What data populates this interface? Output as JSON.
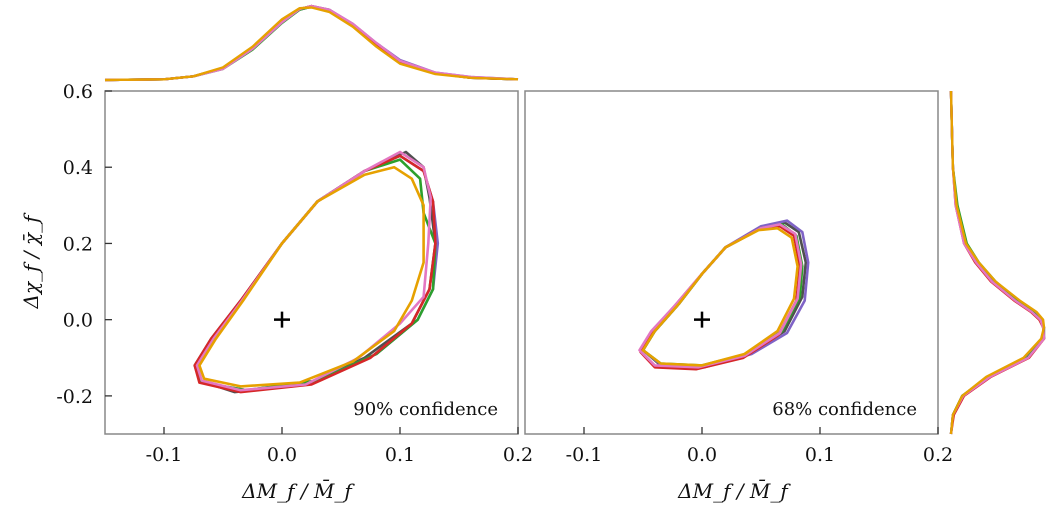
{
  "chart_data": {
    "type": "line",
    "title": "",
    "series_colors": [
      "#4f4f4f",
      "#7f63c6",
      "#2ca02c",
      "#d62728",
      "#e377c2",
      "#e6a100"
    ],
    "panels": [
      {
        "name": "left",
        "xlabel": "ΔM_f / M̄_f",
        "ylabel": "Δχ_f / χ̄_f",
        "xlim": [
          -0.15,
          0.2
        ],
        "ylim": [
          -0.3,
          0.6
        ],
        "xticks": [
          -0.1,
          0.0,
          0.1,
          0.2
        ],
        "xtick_labels": [
          "-0.1",
          "0.0",
          "0.1",
          "0.2"
        ],
        "yticks": [
          -0.2,
          0.0,
          0.2,
          0.4,
          0.6
        ],
        "ytick_labels": [
          "-0.2",
          "0.0",
          "0.2",
          "0.4",
          "0.6"
        ],
        "annotation": "90% confidence",
        "marker": {
          "x": 0.0,
          "y": 0.0,
          "symbol": "+"
        },
        "contours": [
          {
            "x": [
              0.0,
              0.03,
              0.07,
              0.105,
              0.12,
              0.125,
              0.13,
              0.125,
              0.11,
              0.07,
              0.02,
              -0.04,
              -0.07,
              -0.074,
              -0.06,
              -0.035,
              0.0
            ],
            "y": [
              0.2,
              0.31,
              0.39,
              0.44,
              0.4,
              0.32,
              0.2,
              0.08,
              -0.01,
              -0.1,
              -0.17,
              -0.19,
              -0.16,
              -0.12,
              -0.05,
              0.05,
              0.2
            ]
          },
          {
            "x": [
              0.0,
              0.03,
              0.07,
              0.1,
              0.12,
              0.128,
              0.132,
              0.128,
              0.115,
              0.08,
              0.03,
              -0.03,
              -0.068,
              -0.072,
              -0.058,
              -0.034,
              0.0
            ],
            "y": [
              0.2,
              0.31,
              0.39,
              0.43,
              0.39,
              0.31,
              0.2,
              0.08,
              0.0,
              -0.09,
              -0.16,
              -0.185,
              -0.165,
              -0.12,
              -0.05,
              0.05,
              0.2
            ]
          },
          {
            "x": [
              0.0,
              0.03,
              0.07,
              0.1,
              0.117,
              0.12,
              0.13,
              0.128,
              0.115,
              0.08,
              0.03,
              -0.03,
              -0.068,
              -0.072,
              -0.058,
              -0.034,
              0.0
            ],
            "y": [
              0.2,
              0.31,
              0.39,
              0.42,
              0.37,
              0.28,
              0.2,
              0.08,
              0.0,
              -0.09,
              -0.16,
              -0.185,
              -0.165,
              -0.12,
              -0.05,
              0.05,
              0.2
            ]
          },
          {
            "x": [
              0.0,
              0.03,
              0.07,
              0.1,
              0.12,
              0.128,
              0.13,
              0.125,
              0.11,
              0.075,
              0.025,
              -0.035,
              -0.07,
              -0.074,
              -0.06,
              -0.035,
              0.0
            ],
            "y": [
              0.2,
              0.31,
              0.39,
              0.43,
              0.39,
              0.31,
              0.2,
              0.08,
              -0.01,
              -0.1,
              -0.17,
              -0.19,
              -0.165,
              -0.12,
              -0.05,
              0.05,
              0.2
            ]
          },
          {
            "x": [
              0.0,
              0.03,
              0.07,
              0.1,
              0.12,
              0.126,
              0.124,
              0.12,
              0.1,
              0.065,
              0.02,
              -0.035,
              -0.068,
              -0.072,
              -0.058,
              -0.034,
              0.0
            ],
            "y": [
              0.2,
              0.31,
              0.39,
              0.44,
              0.4,
              0.32,
              0.2,
              0.06,
              -0.01,
              -0.1,
              -0.17,
              -0.185,
              -0.16,
              -0.12,
              -0.05,
              0.05,
              0.2
            ]
          },
          {
            "x": [
              0.0,
              0.03,
              0.07,
              0.095,
              0.11,
              0.12,
              0.12,
              0.11,
              0.095,
              0.06,
              0.015,
              -0.035,
              -0.066,
              -0.07,
              -0.056,
              -0.033,
              0.0
            ],
            "y": [
              0.2,
              0.31,
              0.38,
              0.4,
              0.37,
              0.3,
              0.15,
              0.05,
              -0.03,
              -0.11,
              -0.165,
              -0.175,
              -0.155,
              -0.12,
              -0.05,
              0.05,
              0.2
            ]
          }
        ]
      },
      {
        "name": "right",
        "xlabel": "ΔM_f / M̄_f",
        "xlim": [
          -0.15,
          0.2
        ],
        "ylim": [
          -0.3,
          0.6
        ],
        "xticks": [
          -0.1,
          0.0,
          0.1,
          0.2
        ],
        "xtick_labels": [
          "-0.1",
          "0.0",
          "0.1",
          "0.2"
        ],
        "annotation": "68% confidence",
        "marker": {
          "x": 0.0,
          "y": 0.0,
          "symbol": "+"
        },
        "contours": [
          {
            "x": [
              0.0,
              0.02,
              0.05,
              0.07,
              0.082,
              0.088,
              0.085,
              0.07,
              0.04,
              0.0,
              -0.035,
              -0.05,
              -0.04,
              -0.02,
              0.0
            ],
            "y": [
              0.12,
              0.19,
              0.24,
              0.255,
              0.23,
              0.15,
              0.06,
              -0.03,
              -0.09,
              -0.125,
              -0.12,
              -0.08,
              -0.03,
              0.04,
              0.12
            ]
          },
          {
            "x": [
              0.0,
              0.02,
              0.05,
              0.072,
              0.085,
              0.09,
              0.087,
              0.072,
              0.042,
              0.002,
              -0.034,
              -0.05,
              -0.04,
              -0.02,
              0.0
            ],
            "y": [
              0.12,
              0.19,
              0.245,
              0.26,
              0.23,
              0.15,
              0.05,
              -0.035,
              -0.09,
              -0.125,
              -0.12,
              -0.08,
              -0.03,
              0.04,
              0.12
            ]
          },
          {
            "x": [
              0.0,
              0.02,
              0.05,
              0.068,
              0.08,
              0.085,
              0.083,
              0.068,
              0.038,
              0.0,
              -0.035,
              -0.05,
              -0.04,
              -0.02,
              0.0
            ],
            "y": [
              0.12,
              0.19,
              0.24,
              0.25,
              0.22,
              0.14,
              0.06,
              -0.03,
              -0.09,
              -0.12,
              -0.115,
              -0.08,
              -0.03,
              0.04,
              0.12
            ]
          },
          {
            "x": [
              0.0,
              0.02,
              0.05,
              0.066,
              0.078,
              0.083,
              0.08,
              0.065,
              0.035,
              -0.005,
              -0.04,
              -0.052,
              -0.042,
              -0.022,
              0.0
            ],
            "y": [
              0.12,
              0.19,
              0.24,
              0.245,
              0.22,
              0.14,
              0.05,
              -0.04,
              -0.1,
              -0.13,
              -0.125,
              -0.085,
              -0.03,
              0.04,
              0.12
            ]
          },
          {
            "x": [
              0.0,
              0.02,
              0.05,
              0.066,
              0.079,
              0.084,
              0.081,
              0.066,
              0.036,
              -0.003,
              -0.04,
              -0.053,
              -0.043,
              -0.022,
              0.0
            ],
            "y": [
              0.12,
              0.19,
              0.24,
              0.25,
              0.225,
              0.145,
              0.055,
              -0.035,
              -0.095,
              -0.125,
              -0.12,
              -0.08,
              -0.03,
              0.04,
              0.12
            ]
          },
          {
            "x": [
              0.0,
              0.02,
              0.048,
              0.064,
              0.076,
              0.081,
              0.078,
              0.064,
              0.036,
              0.0,
              -0.035,
              -0.05,
              -0.04,
              -0.02,
              0.0
            ],
            "y": [
              0.12,
              0.19,
              0.235,
              0.24,
              0.215,
              0.14,
              0.055,
              -0.03,
              -0.09,
              -0.12,
              -0.115,
              -0.08,
              -0.03,
              0.04,
              0.12
            ]
          }
        ]
      }
    ],
    "marginal_top": {
      "axis": "x",
      "x": [
        -0.15,
        -0.1,
        -0.075,
        -0.05,
        -0.025,
        0.0,
        0.015,
        0.025,
        0.04,
        0.06,
        0.08,
        0.1,
        0.13,
        0.16,
        0.2
      ],
      "series": [
        [
          0.0,
          0.01,
          0.05,
          0.16,
          0.42,
          0.78,
          0.96,
          1.0,
          0.95,
          0.75,
          0.48,
          0.25,
          0.09,
          0.03,
          0.01
        ],
        [
          0.0,
          0.01,
          0.05,
          0.16,
          0.42,
          0.78,
          0.95,
          0.99,
          0.95,
          0.76,
          0.5,
          0.27,
          0.1,
          0.04,
          0.01
        ],
        [
          0.0,
          0.01,
          0.05,
          0.15,
          0.41,
          0.77,
          0.95,
          0.99,
          0.94,
          0.74,
          0.47,
          0.24,
          0.09,
          0.03,
          0.01
        ],
        [
          0.0,
          0.01,
          0.05,
          0.16,
          0.43,
          0.79,
          0.96,
          1.0,
          0.94,
          0.74,
          0.47,
          0.24,
          0.09,
          0.03,
          0.01
        ],
        [
          0.0,
          0.01,
          0.05,
          0.15,
          0.42,
          0.78,
          0.96,
          1.0,
          0.95,
          0.76,
          0.5,
          0.26,
          0.1,
          0.04,
          0.01
        ],
        [
          0.0,
          0.01,
          0.05,
          0.17,
          0.45,
          0.82,
          0.97,
          0.98,
          0.92,
          0.72,
          0.45,
          0.22,
          0.08,
          0.03,
          0.01
        ]
      ]
    },
    "marginal_right": {
      "axis": "y",
      "y": [
        -0.3,
        -0.25,
        -0.2,
        -0.15,
        -0.1,
        -0.05,
        -0.02,
        0.0,
        0.02,
        0.05,
        0.1,
        0.15,
        0.2,
        0.3,
        0.4,
        0.5,
        0.6
      ],
      "series": [
        [
          0.0,
          0.02,
          0.12,
          0.4,
          0.82,
          1.0,
          1.0,
          0.97,
          0.88,
          0.7,
          0.45,
          0.28,
          0.15,
          0.06,
          0.02,
          0.01,
          0.0
        ],
        [
          0.0,
          0.02,
          0.12,
          0.39,
          0.8,
          0.99,
          1.0,
          0.98,
          0.9,
          0.72,
          0.47,
          0.29,
          0.16,
          0.06,
          0.02,
          0.01,
          0.0
        ],
        [
          0.0,
          0.02,
          0.12,
          0.4,
          0.82,
          1.0,
          0.99,
          0.96,
          0.88,
          0.72,
          0.48,
          0.3,
          0.17,
          0.07,
          0.02,
          0.01,
          0.0
        ],
        [
          0.0,
          0.03,
          0.14,
          0.43,
          0.84,
          1.0,
          0.99,
          0.95,
          0.86,
          0.68,
          0.43,
          0.26,
          0.14,
          0.05,
          0.02,
          0.01,
          0.0
        ],
        [
          0.0,
          0.02,
          0.13,
          0.42,
          0.83,
          1.0,
          0.99,
          0.96,
          0.87,
          0.69,
          0.44,
          0.27,
          0.14,
          0.05,
          0.02,
          0.01,
          0.0
        ],
        [
          0.0,
          0.02,
          0.12,
          0.38,
          0.78,
          0.97,
          1.0,
          0.99,
          0.92,
          0.74,
          0.48,
          0.3,
          0.16,
          0.06,
          0.02,
          0.01,
          0.0
        ]
      ]
    }
  }
}
